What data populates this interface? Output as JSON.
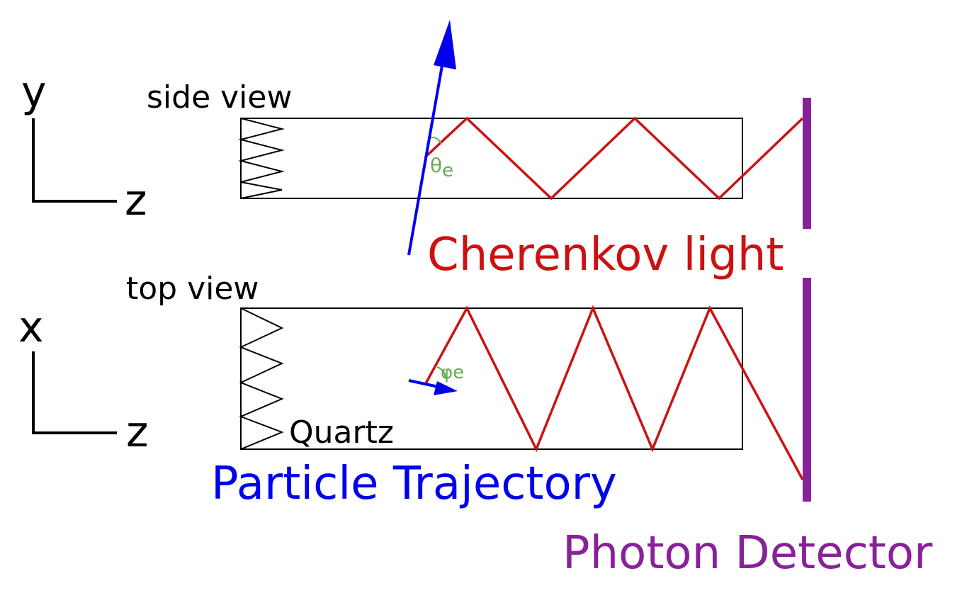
{
  "labels": {
    "axis_y": "y",
    "axis_z_top": "z",
    "axis_x": "x",
    "axis_z_bottom": "z",
    "side_view": "side view",
    "top_view": "top view",
    "theta": "θ",
    "theta_sub": "e",
    "phi": "φ",
    "phi_sub": "e",
    "cherenkov": "Cherenkov light",
    "quartz": "Quartz",
    "trajectory": "Particle Trajectory",
    "detector": "Photon Detector"
  },
  "colors": {
    "particle": "#0000ee",
    "light": "#cc1111",
    "detector": "#882299",
    "angle": "#66aa55",
    "outline": "#000000"
  }
}
